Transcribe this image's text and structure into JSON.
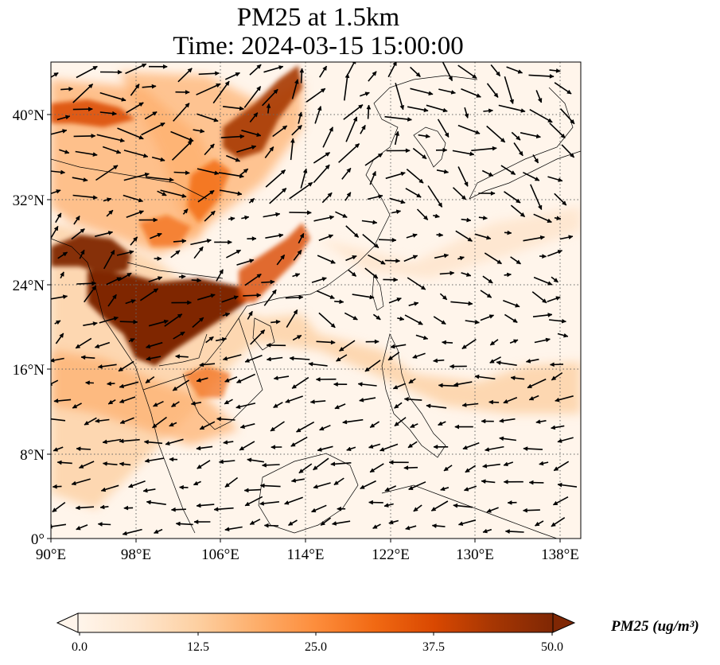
{
  "title_line1": "PM25 at 1.5km",
  "title_line2": "Time: 2024-03-15 15:00:00",
  "lon_ticks": [
    "90°E",
    "98°E",
    "106°E",
    "114°E",
    "122°E",
    "130°E",
    "138°E"
  ],
  "lat_ticks": [
    "0°",
    "8°N",
    "16°N",
    "24°N",
    "32°N",
    "40°N"
  ],
  "colorbar": {
    "ticks": [
      "0.0",
      "12.5",
      "25.0",
      "37.5",
      "50.0"
    ],
    "label": "PM25 (ug/m³)",
    "min": 0,
    "max": 50,
    "colors": [
      "#fff5eb",
      "#fee6ce",
      "#fdd0a2",
      "#fdae6b",
      "#fd8d3c",
      "#f16913",
      "#d94801",
      "#a63603",
      "#7f2704"
    ]
  },
  "map": {
    "lon_range": [
      90,
      140
    ],
    "lat_range": [
      0,
      45
    ]
  }
}
